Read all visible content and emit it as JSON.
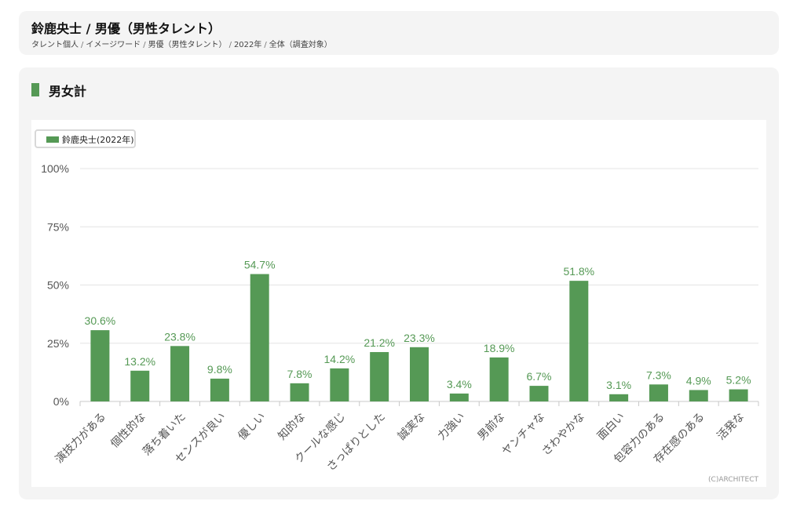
{
  "header": {
    "title": "鈴鹿央士 / 男優（男性タレント）",
    "breadcrumb": [
      "タレント個人",
      "イメージワード",
      "男優（男性タレント）",
      "2022年",
      "全体（調査対象）"
    ]
  },
  "section": {
    "title": "男女計"
  },
  "colors": {
    "bar": "#559955",
    "label": "#559955",
    "grid": "#e4e4e4",
    "axis_text": "#555555"
  },
  "chart_data": {
    "type": "bar",
    "categories": [
      "演技力がある",
      "個性的な",
      "落ち着いた",
      "センスが良い",
      "優しい",
      "知的な",
      "クールな感じ",
      "さっぱりとした",
      "誠実な",
      "力強い",
      "男前な",
      "ヤンチャな",
      "さわやかな",
      "面白い",
      "包容力のある",
      "存在感のある",
      "活発な"
    ],
    "series": [
      {
        "name": "鈴鹿央士(2022年)",
        "values": [
          30.6,
          13.2,
          23.8,
          9.8,
          54.7,
          7.8,
          14.2,
          21.2,
          23.3,
          3.4,
          18.9,
          6.7,
          51.8,
          3.1,
          7.3,
          4.9,
          5.2
        ],
        "labels": [
          "30.6%",
          "13.2%",
          "23.8%",
          "9.8%",
          "54.7%",
          "7.8%",
          "14.2%",
          "21.2%",
          "23.3%",
          "3.4%",
          "18.9%",
          "6.7%",
          "51.8%",
          "3.1%",
          "7.3%",
          "4.9%",
          "5.2%"
        ]
      }
    ],
    "ylim": [
      0,
      100
    ],
    "yticks": [
      0,
      25,
      50,
      75,
      100
    ],
    "ytick_labels": [
      "0%",
      "25%",
      "50%",
      "75%",
      "100%"
    ],
    "grid": true,
    "legend_position": "top-left"
  },
  "copyright": "(C)ARCHITECT"
}
